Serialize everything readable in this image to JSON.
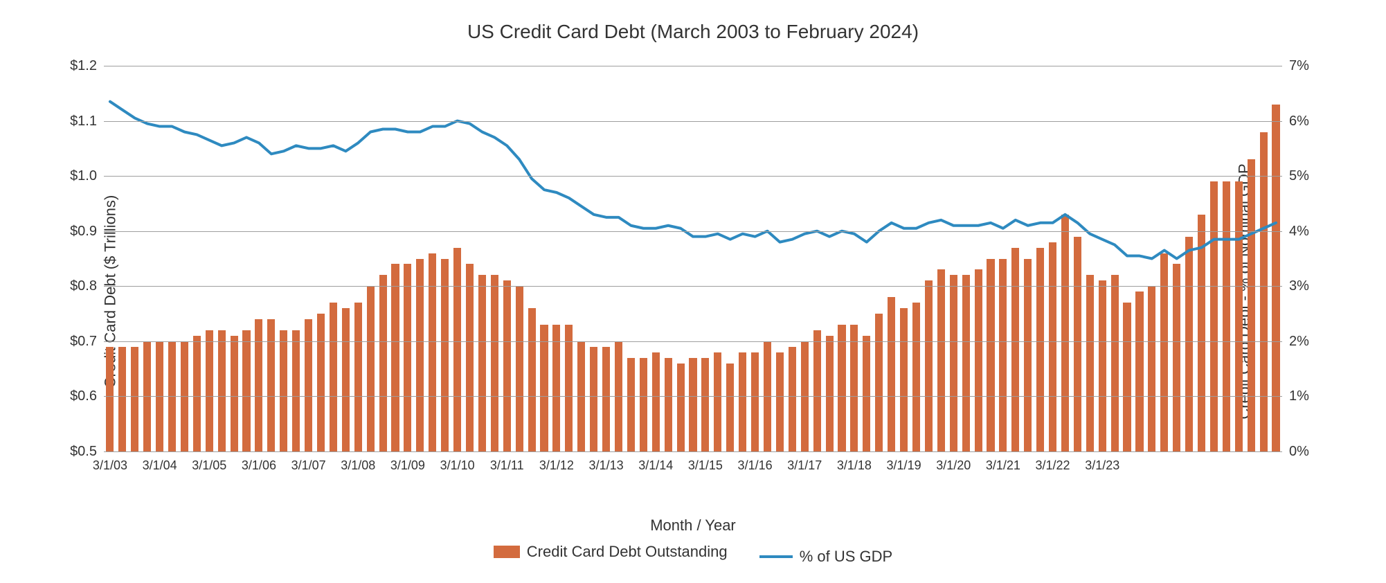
{
  "chart": {
    "title": "US Credit Card Debt (March 2003 to February 2024)",
    "xlabel": "Month / Year",
    "ylabel_left": "Credit Card Debt ($ Trillions)",
    "ylabel_right": "Credit Card Debt - % of Nominal GDP",
    "type": "bar+line",
    "font_family": "Helvetica Neue, Helvetica, Arial, sans-serif",
    "title_fontsize": 28,
    "axis_label_fontsize": 22,
    "tick_fontsize": 20,
    "xtick_fontsize": 18,
    "legend_fontsize": 22,
    "background_color": "#ffffff",
    "text_color": "#333333",
    "grid_color": "#9e9e9e",
    "bar_color": "#d36b3e",
    "line_color": "#2e8ac0",
    "line_width": 4,
    "bar_width_ratio": 0.62,
    "left_axis": {
      "min": 0.5,
      "max": 1.2,
      "ticks": [
        0.5,
        0.6,
        0.7,
        0.8,
        0.9,
        1.0,
        1.1,
        1.2
      ],
      "tick_labels": [
        "$0.5",
        "$0.6",
        "$0.7",
        "$0.8",
        "$0.9",
        "$1.0",
        "$1.1",
        "$1.2"
      ]
    },
    "right_axis": {
      "min": 0,
      "max": 7,
      "ticks": [
        0,
        1,
        2,
        3,
        4,
        5,
        6,
        7
      ],
      "tick_labels": [
        "0%",
        "1%",
        "2%",
        "3%",
        "4%",
        "5%",
        "6%",
        "7%"
      ]
    },
    "x_tick_labels": [
      "3/1/03",
      "3/1/04",
      "3/1/05",
      "3/1/06",
      "3/1/07",
      "3/1/08",
      "3/1/09",
      "3/1/10",
      "3/1/11",
      "3/1/12",
      "3/1/13",
      "3/1/14",
      "3/1/15",
      "3/1/16",
      "3/1/17",
      "3/1/18",
      "3/1/19",
      "3/1/20",
      "3/1/21",
      "3/1/22",
      "3/1/23"
    ],
    "x_tick_every": 4,
    "series": {
      "bars": {
        "label": "Credit Card Debt Outstanding",
        "values": [
          0.69,
          0.69,
          0.69,
          0.7,
          0.7,
          0.7,
          0.7,
          0.71,
          0.72,
          0.72,
          0.71,
          0.72,
          0.74,
          0.74,
          0.72,
          0.72,
          0.74,
          0.75,
          0.77,
          0.76,
          0.77,
          0.8,
          0.82,
          0.84,
          0.84,
          0.85,
          0.86,
          0.85,
          0.87,
          0.84,
          0.82,
          0.82,
          0.81,
          0.8,
          0.76,
          0.73,
          0.73,
          0.73,
          0.7,
          0.69,
          0.69,
          0.7,
          0.67,
          0.67,
          0.68,
          0.67,
          0.66,
          0.67,
          0.67,
          0.68,
          0.66,
          0.68,
          0.68,
          0.7,
          0.68,
          0.69,
          0.7,
          0.72,
          0.71,
          0.73,
          0.73,
          0.71,
          0.75,
          0.78,
          0.76,
          0.77,
          0.81,
          0.83,
          0.82,
          0.82,
          0.83,
          0.85,
          0.85,
          0.87,
          0.85,
          0.87,
          0.88,
          0.93,
          0.89,
          0.82,
          0.81,
          0.82,
          0.77,
          0.79,
          0.8,
          0.86,
          0.84,
          0.89,
          0.93,
          0.99,
          0.99,
          0.99,
          1.03,
          1.08,
          1.13
        ]
      },
      "line": {
        "label": "% of US GDP",
        "values": [
          6.35,
          6.2,
          6.05,
          5.95,
          5.9,
          5.9,
          5.8,
          5.75,
          5.65,
          5.55,
          5.6,
          5.7,
          5.6,
          5.4,
          5.45,
          5.55,
          5.5,
          5.5,
          5.55,
          5.45,
          5.6,
          5.8,
          5.85,
          5.85,
          5.8,
          5.8,
          5.9,
          5.9,
          6.0,
          5.95,
          5.8,
          5.7,
          5.55,
          5.3,
          4.95,
          4.75,
          4.7,
          4.6,
          4.45,
          4.3,
          4.25,
          4.25,
          4.1,
          4.05,
          4.05,
          4.1,
          4.05,
          3.9,
          3.9,
          3.95,
          3.85,
          3.95,
          3.9,
          4.0,
          3.8,
          3.85,
          3.95,
          4.0,
          3.9,
          4.0,
          3.95,
          3.8,
          4.0,
          4.15,
          4.05,
          4.05,
          4.15,
          4.2,
          4.1,
          4.1,
          4.1,
          4.15,
          4.05,
          4.2,
          4.1,
          4.15,
          4.15,
          4.3,
          4.15,
          3.95,
          3.85,
          3.75,
          3.55,
          3.55,
          3.5,
          3.65,
          3.5,
          3.65,
          3.7,
          3.85,
          3.85,
          3.85,
          3.95,
          4.05,
          4.15
        ]
      }
    },
    "legend": {
      "items": [
        {
          "type": "bar",
          "label": "Credit Card Debt Outstanding"
        },
        {
          "type": "line",
          "label": "% of US GDP"
        }
      ]
    }
  }
}
